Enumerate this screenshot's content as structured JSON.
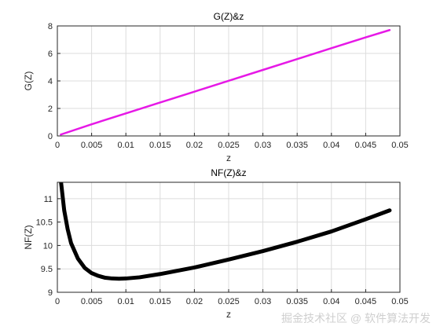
{
  "chart_data": [
    {
      "type": "line",
      "title": "G(Z)&z",
      "xlabel": "z",
      "ylabel": "G(Z)",
      "xlim": [
        0,
        0.05
      ],
      "ylim": [
        0,
        8
      ],
      "xticks": [
        0,
        0.005,
        0.01,
        0.015,
        0.02,
        0.025,
        0.03,
        0.035,
        0.04,
        0.045,
        0.05
      ],
      "xtick_labels": [
        "0",
        "0.005",
        "0.01",
        "0.015",
        "0.02",
        "0.025",
        "0.03",
        "0.035",
        "0.04",
        "0.045",
        "0.05"
      ],
      "yticks": [
        0,
        2,
        4,
        6,
        8
      ],
      "ytick_labels": [
        "0",
        "2",
        "4",
        "6",
        "8"
      ],
      "grid": true,
      "series": [
        {
          "color": "#e619e6",
          "x": [
            0.0005,
            0.005,
            0.01,
            0.015,
            0.02,
            0.025,
            0.03,
            0.035,
            0.04,
            0.045,
            0.0485
          ],
          "y": [
            0.1,
            0.85,
            1.64,
            2.43,
            3.22,
            4.01,
            4.8,
            5.59,
            6.38,
            7.17,
            7.7
          ]
        }
      ]
    },
    {
      "type": "line",
      "title": "NF(Z)&z",
      "xlabel": "z",
      "ylabel": "NF(Z)",
      "xlim": [
        0,
        0.05
      ],
      "ylim": [
        9,
        11.35
      ],
      "xticks": [
        0,
        0.005,
        0.01,
        0.015,
        0.02,
        0.025,
        0.03,
        0.035,
        0.04,
        0.045,
        0.05
      ],
      "xtick_labels": [
        "0",
        "0.005",
        "0.01",
        "0.015",
        "0.02",
        "0.025",
        "0.03",
        "0.035",
        "0.04",
        "0.045",
        "0.05"
      ],
      "yticks": [
        9,
        9.5,
        10,
        10.5,
        11
      ],
      "ytick_labels": [
        "9",
        "9.5",
        "10",
        "10.5",
        "11"
      ],
      "grid": true,
      "series": [
        {
          "color": "#000000",
          "x": [
            0.0005,
            0.001,
            0.0015,
            0.002,
            0.003,
            0.004,
            0.005,
            0.006,
            0.007,
            0.008,
            0.009,
            0.01,
            0.012,
            0.015,
            0.02,
            0.025,
            0.03,
            0.035,
            0.04,
            0.045,
            0.0485
          ],
          "y": [
            11.4,
            10.75,
            10.35,
            10.05,
            9.72,
            9.52,
            9.41,
            9.35,
            9.31,
            9.295,
            9.29,
            9.295,
            9.32,
            9.39,
            9.53,
            9.7,
            9.88,
            10.08,
            10.3,
            10.56,
            10.75
          ]
        }
      ]
    }
  ],
  "watermark": "掘金技术社区 @ 软件算法开发"
}
